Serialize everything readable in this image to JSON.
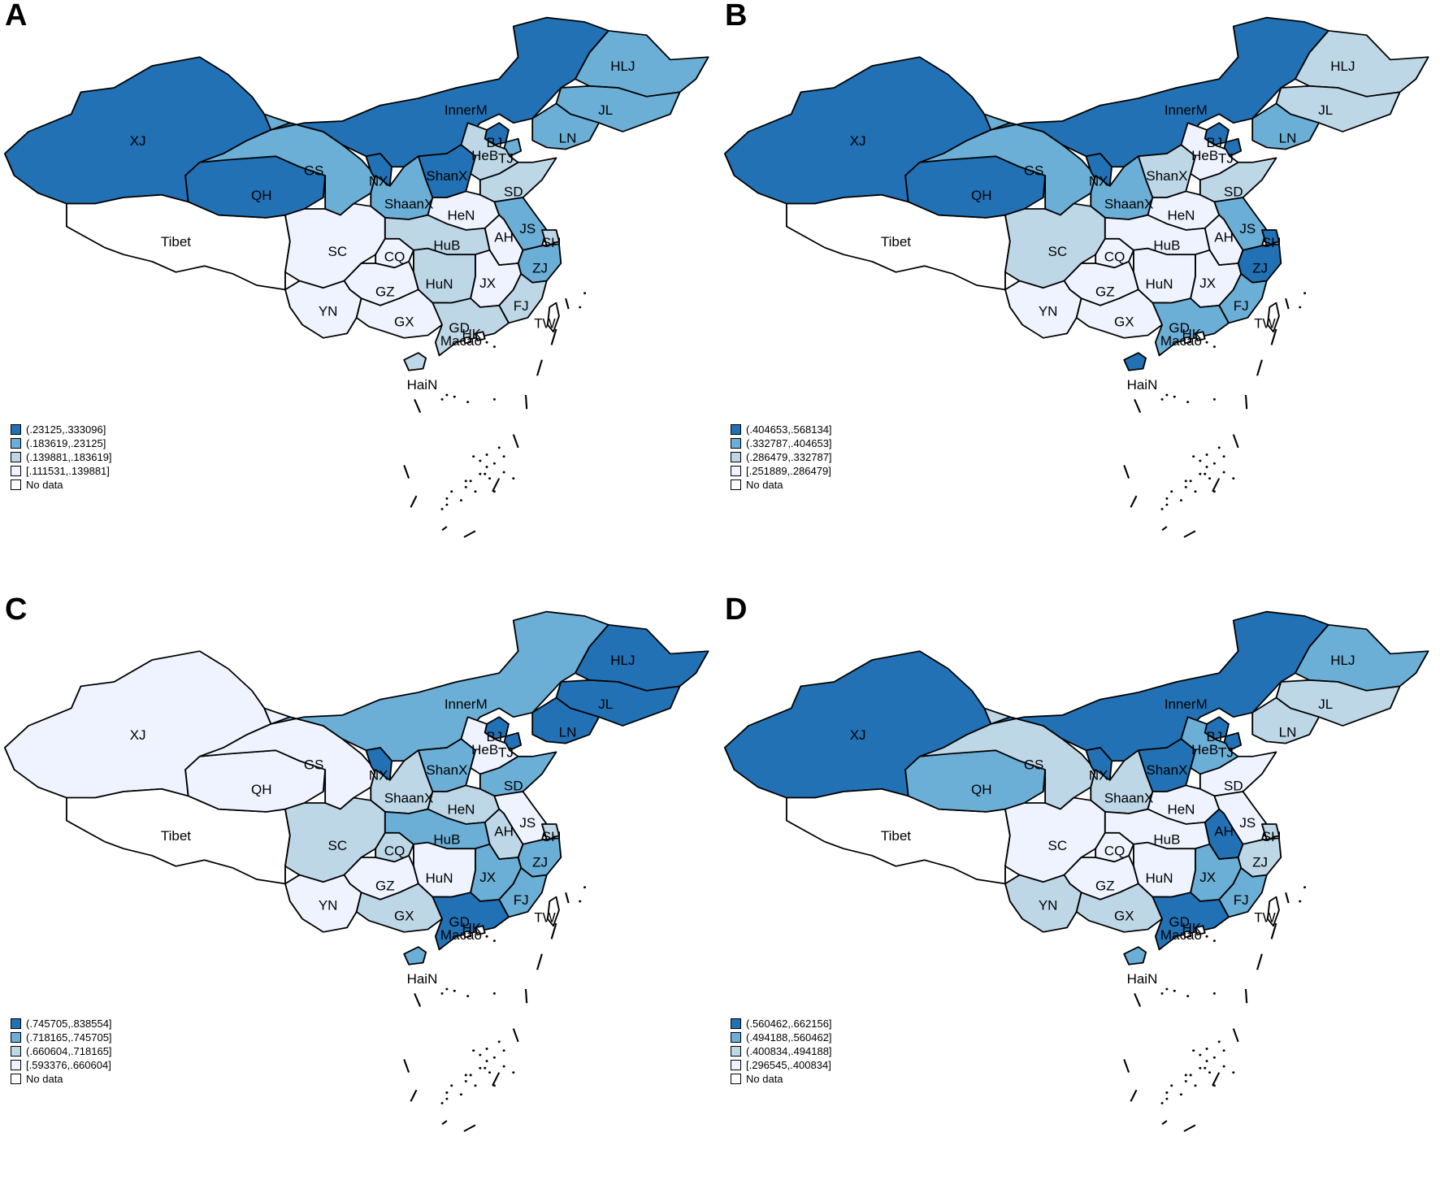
{
  "palette": {
    "c4": "#2271b5",
    "c3": "#6baed6",
    "c2": "#bdd7e7",
    "c1": "#eff3ff",
    "nodata": "#ffffff"
  },
  "province_labels": {
    "XJ": "XJ",
    "Tibet": "Tibet",
    "QH": "QH",
    "GS": "GS",
    "InnerM": "InnerM",
    "HLJ": "HLJ",
    "JL": "JL",
    "LN": "LN",
    "BJ": "BJ",
    "TJ": "TJ",
    "HeB": "HeB",
    "ShanX": "ShanX",
    "NX": "NX",
    "ShaanX": "ShaanX",
    "SD": "SD",
    "HeN": "HeN",
    "JS": "JS",
    "AH": "AH",
    "SH": "SH",
    "SC": "SC",
    "CQ": "CQ",
    "HuB": "HuB",
    "ZJ": "ZJ",
    "HuN": "HuN",
    "JX": "JX",
    "GZ": "GZ",
    "FJ": "FJ",
    "YN": "YN",
    "GX": "GX",
    "GD": "GD",
    "TW": "TW",
    "HK": "HK",
    "Macao": "Macao",
    "HaiN": "HaiN"
  },
  "panels": [
    {
      "letter": "A",
      "legend": [
        "(.23125,.333096]",
        "(.183619,.23125]",
        "(.139881,.183619]",
        "[.111531,.139881]",
        "No data"
      ],
      "classes": {
        "XJ": 4,
        "Tibet": 0,
        "QH": 4,
        "GS": 3,
        "InnerM": 4,
        "HLJ": 3,
        "JL": 3,
        "LN": 3,
        "BJ": 4,
        "TJ": 3,
        "HeB": 2,
        "ShanX": 4,
        "NX": 4,
        "ShaanX": 3,
        "SD": 2,
        "HeN": 1,
        "JS": 3,
        "AH": 1,
        "SH": 2,
        "SC": 1,
        "CQ": 1,
        "HuB": 2,
        "ZJ": 3,
        "HuN": 2,
        "JX": 1,
        "GZ": 1,
        "FJ": 2,
        "YN": 1,
        "GX": 1,
        "GD": 2,
        "TW": 0,
        "HK": 0,
        "Macao": 0,
        "HaiN": 2
      }
    },
    {
      "letter": "B",
      "legend": [
        "(.404653,.568134]",
        "(.332787,.404653]",
        "(.286479,.332787]",
        "[.251889,.286479]",
        "No data"
      ],
      "classes": {
        "XJ": 4,
        "Tibet": 0,
        "QH": 4,
        "GS": 3,
        "InnerM": 4,
        "HLJ": 2,
        "JL": 2,
        "LN": 3,
        "BJ": 4,
        "TJ": 4,
        "HeB": 1,
        "ShanX": 2,
        "NX": 4,
        "ShaanX": 3,
        "SD": 2,
        "HeN": 1,
        "JS": 3,
        "AH": 1,
        "SH": 4,
        "SC": 2,
        "CQ": 1,
        "HuB": 1,
        "ZJ": 4,
        "HuN": 1,
        "JX": 1,
        "GZ": 1,
        "FJ": 3,
        "YN": 1,
        "GX": 1,
        "GD": 3,
        "TW": 0,
        "HK": 0,
        "Macao": 0,
        "HaiN": 4
      }
    },
    {
      "letter": "C",
      "legend": [
        "(.745705,.838554]",
        "(.718165,.745705]",
        "(.660604,.718165]",
        "[.593376,.660604]",
        "No data"
      ],
      "classes": {
        "XJ": 1,
        "Tibet": 0,
        "QH": 1,
        "GS": 1,
        "InnerM": 3,
        "HLJ": 4,
        "JL": 4,
        "LN": 4,
        "BJ": 4,
        "TJ": 4,
        "HeB": 1,
        "ShanX": 3,
        "NX": 4,
        "ShaanX": 2,
        "SD": 3,
        "HeN": 2,
        "JS": 1,
        "AH": 2,
        "SH": 2,
        "SC": 2,
        "CQ": 2,
        "HuB": 3,
        "ZJ": 3,
        "HuN": 1,
        "JX": 3,
        "GZ": 1,
        "FJ": 3,
        "YN": 1,
        "GX": 2,
        "GD": 4,
        "TW": 0,
        "HK": 0,
        "Macao": 0,
        "HaiN": 3
      }
    },
    {
      "letter": "D",
      "legend": [
        "(.560462,.662156]",
        "(.494188,.560462]",
        "(.400834,.494188]",
        "[.296545,.400834]",
        "No data"
      ],
      "classes": {
        "XJ": 4,
        "Tibet": 0,
        "QH": 3,
        "GS": 2,
        "InnerM": 4,
        "HLJ": 3,
        "JL": 2,
        "LN": 2,
        "BJ": 4,
        "TJ": 4,
        "HeB": 3,
        "ShanX": 4,
        "NX": 4,
        "ShaanX": 2,
        "SD": 1,
        "HeN": 1,
        "JS": 1,
        "AH": 4,
        "SH": 2,
        "SC": 1,
        "CQ": 1,
        "HuB": 1,
        "ZJ": 2,
        "HuN": 1,
        "JX": 3,
        "GZ": 1,
        "FJ": 3,
        "YN": 2,
        "GX": 2,
        "GD": 4,
        "TW": 0,
        "HK": 0,
        "Macao": 0,
        "HaiN": 3
      }
    }
  ]
}
